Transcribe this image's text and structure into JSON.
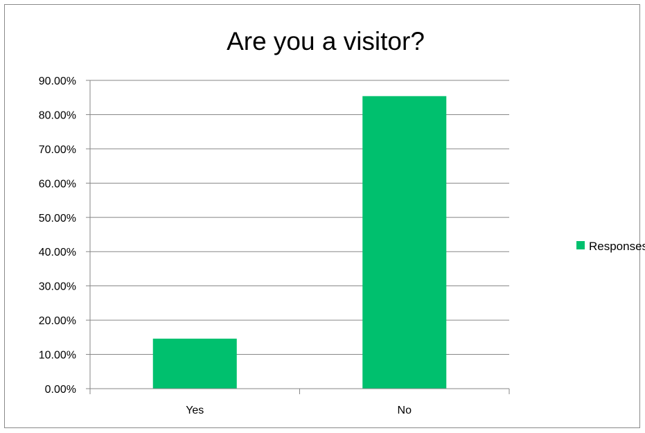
{
  "chart_data": {
    "type": "bar",
    "title": "Are you a visitor?",
    "xlabel": "",
    "ylabel": "",
    "categories": [
      "Yes",
      "No"
    ],
    "series": [
      {
        "name": "Responses",
        "values": [
          0.146,
          0.854
        ],
        "color": "#00c06e"
      }
    ],
    "ylim": [
      0,
      0.9
    ],
    "yticks": [
      0,
      0.1,
      0.2,
      0.3,
      0.4,
      0.5,
      0.6,
      0.7,
      0.8,
      0.9
    ],
    "ytick_labels": [
      "0.00%",
      "10.00%",
      "20.00%",
      "30.00%",
      "40.00%",
      "50.00%",
      "60.00%",
      "70.00%",
      "80.00%",
      "90.00%"
    ],
    "grid": true,
    "legend_position": "right"
  }
}
